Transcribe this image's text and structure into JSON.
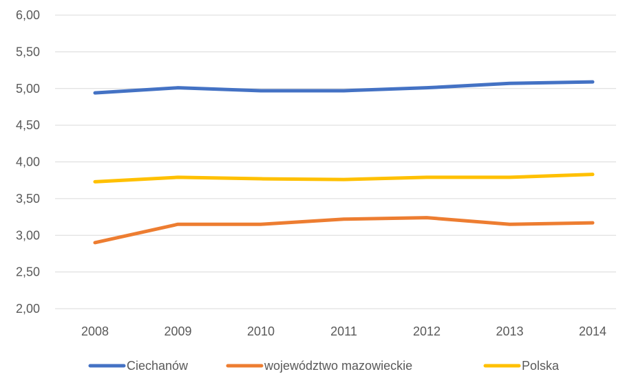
{
  "chart_data": {
    "type": "line",
    "title": "",
    "xlabel": "",
    "ylabel": "",
    "categories": [
      "2008",
      "2009",
      "2010",
      "2011",
      "2012",
      "2013",
      "2014"
    ],
    "ylim": [
      2.0,
      6.0
    ],
    "yticks": [
      2.0,
      2.5,
      3.0,
      3.5,
      4.0,
      4.5,
      5.0,
      5.5,
      6.0
    ],
    "ytick_labels": [
      "2,00",
      "2,50",
      "3,00",
      "3,50",
      "4,00",
      "4,50",
      "5,00",
      "5,50",
      "6,00"
    ],
    "grid": true,
    "legend_position": "bottom",
    "series": [
      {
        "name": "Ciechanów",
        "color": "#4472C4",
        "values": [
          4.94,
          5.01,
          4.97,
          4.97,
          5.01,
          5.07,
          5.09
        ]
      },
      {
        "name": "województwo mazowieckie",
        "color": "#ED7D31",
        "values": [
          2.9,
          3.15,
          3.15,
          3.22,
          3.24,
          3.15,
          3.17
        ]
      },
      {
        "name": "Polska",
        "color": "#FFC000",
        "values": [
          3.73,
          3.79,
          3.77,
          3.76,
          3.79,
          3.79,
          3.83
        ]
      }
    ]
  }
}
